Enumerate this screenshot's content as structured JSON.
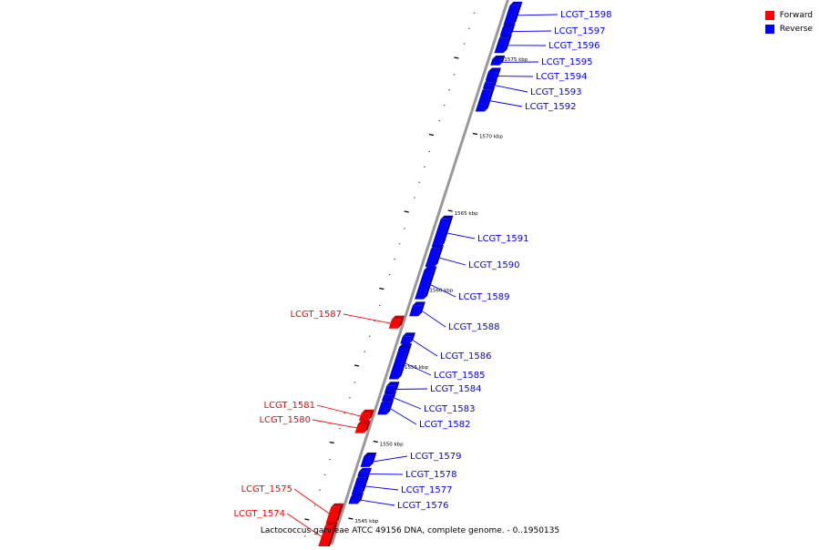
{
  "caption": "Lactococcus garvieae ATCC 49156 DNA, complete genome. - 0..1950135",
  "legend": [
    {
      "label": "Forward",
      "color": "#ff0000"
    },
    {
      "label": "Reverse",
      "color": "#0000ff"
    }
  ],
  "colors": {
    "forward": "#ff0000",
    "reverse": "#0000ff",
    "axis": "#999999"
  },
  "ticks": [
    {
      "label": "1545 kbp",
      "pos": 1545
    },
    {
      "label": "1550 kbp",
      "pos": 1550
    },
    {
      "label": "1555 kbp",
      "pos": 1555
    },
    {
      "label": "1560 kbp",
      "pos": 1560
    },
    {
      "label": "1565 kbp",
      "pos": 1565
    },
    {
      "label": "1570 kbp",
      "pos": 1570
    },
    {
      "label": "1575 kbp",
      "pos": 1575
    }
  ],
  "genes": [
    {
      "name": "LCGT_1598",
      "strand": "reverse",
      "start": 1577.2,
      "end": 1578.5
    },
    {
      "name": "LCGT_1597",
      "strand": "reverse",
      "start": 1576.5,
      "end": 1577.1
    },
    {
      "name": "LCGT_1596",
      "strand": "reverse",
      "start": 1575.4,
      "end": 1576.4
    },
    {
      "name": "LCGT_1595",
      "strand": "reverse",
      "start": 1574.6,
      "end": 1575.0
    },
    {
      "name": "LCGT_1594",
      "strand": "reverse",
      "start": 1573.6,
      "end": 1574.2
    },
    {
      "name": "LCGT_1593",
      "strand": "reverse",
      "start": 1573.1,
      "end": 1573.5
    },
    {
      "name": "LCGT_1592",
      "strand": "reverse",
      "start": 1571.6,
      "end": 1573.0
    },
    {
      "name": "LCGT_1591",
      "strand": "reverse",
      "start": 1562.8,
      "end": 1564.6
    },
    {
      "name": "LCGT_1590",
      "strand": "reverse",
      "start": 1561.5,
      "end": 1562.7
    },
    {
      "name": "LCGT_1589",
      "strand": "reverse",
      "start": 1559.4,
      "end": 1561.3
    },
    {
      "name": "LCGT_1588",
      "strand": "reverse",
      "start": 1558.3,
      "end": 1559.0
    },
    {
      "name": "LCGT_1587",
      "strand": "forward",
      "start": 1557.5,
      "end": 1558.1
    },
    {
      "name": "LCGT_1586",
      "strand": "reverse",
      "start": 1556.5,
      "end": 1557.0
    },
    {
      "name": "LCGT_1585",
      "strand": "reverse",
      "start": 1554.2,
      "end": 1556.3
    },
    {
      "name": "LCGT_1584",
      "strand": "reverse",
      "start": 1553.3,
      "end": 1553.8
    },
    {
      "name": "LCGT_1583",
      "strand": "reverse",
      "start": 1552.8,
      "end": 1553.2
    },
    {
      "name": "LCGT_1582",
      "strand": "reverse",
      "start": 1551.9,
      "end": 1552.7
    },
    {
      "name": "LCGT_1581",
      "strand": "forward",
      "start": 1551.5,
      "end": 1552.0
    },
    {
      "name": "LCGT_1580",
      "strand": "forward",
      "start": 1550.7,
      "end": 1551.3
    },
    {
      "name": "LCGT_1579",
      "strand": "reverse",
      "start": 1548.5,
      "end": 1549.2
    },
    {
      "name": "LCGT_1578",
      "strand": "reverse",
      "start": 1547.9,
      "end": 1548.2
    },
    {
      "name": "LCGT_1577",
      "strand": "reverse",
      "start": 1546.7,
      "end": 1547.8
    },
    {
      "name": "LCGT_1576",
      "strand": "reverse",
      "start": 1546.1,
      "end": 1546.6
    },
    {
      "name": "LCGT_1575",
      "strand": "forward",
      "start": 1544.8,
      "end": 1545.9
    },
    {
      "name": "LCGT_1574",
      "strand": "forward",
      "start": 1543.0,
      "end": 1544.7
    }
  ]
}
